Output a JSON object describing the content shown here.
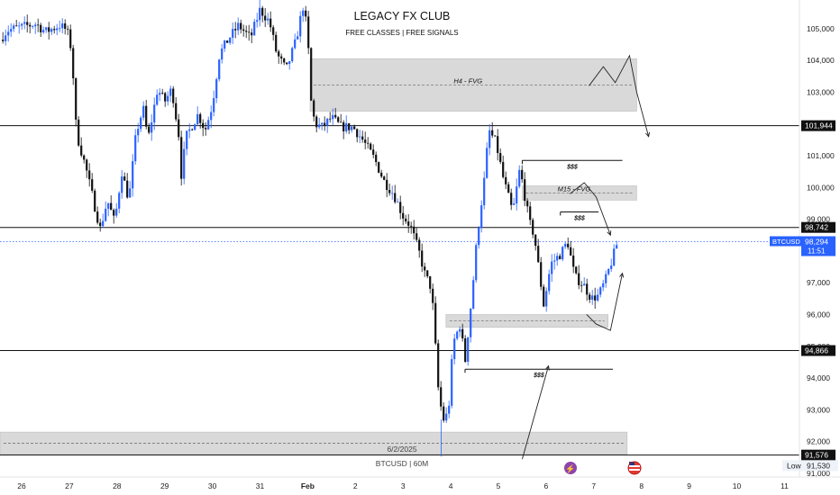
{
  "header": {
    "title": "LEGACY FX CLUB",
    "subtitle": "FREE CLASSES | FREE SIGNALS"
  },
  "footer": {
    "symbol_interval": "BTCUSD | 60M",
    "cursor_date": "6/2/2025"
  },
  "colors": {
    "up_candle": "#2962ff",
    "down_candle": "#111111",
    "level_line": "#111111",
    "current_price_line": "#2962ff",
    "zone_fill": "#d9d9d9",
    "price_tag_dark": "#111111",
    "price_tag_blue": "#2962ff"
  },
  "chart_data": {
    "type": "candlestick",
    "symbol": "BTCUSD",
    "interval": "60M",
    "ylim": [
      91000,
      105900
    ],
    "y_ticks": [
      {
        "v": 105000,
        "label": "105,000"
      },
      {
        "v": 104000,
        "label": "104,000"
      },
      {
        "v": 103000,
        "label": "103,000"
      },
      {
        "v": 101000,
        "label": "101,000"
      },
      {
        "v": 100000,
        "label": "100,000"
      },
      {
        "v": 99000,
        "label": "99,000"
      },
      {
        "v": 97000,
        "label": "97,000"
      },
      {
        "v": 96000,
        "label": "96,000"
      },
      {
        "v": 95000,
        "label": "95,000"
      },
      {
        "v": 94000,
        "label": "94,000"
      },
      {
        "v": 93000,
        "label": "93,000"
      },
      {
        "v": 92000,
        "label": "92,000"
      },
      {
        "v": 91000,
        "label": "91,000"
      }
    ],
    "x_ticks": [
      {
        "t": 0,
        "label": "26"
      },
      {
        "t": 1,
        "label": "27"
      },
      {
        "t": 2,
        "label": "28"
      },
      {
        "t": 3,
        "label": "29"
      },
      {
        "t": 4,
        "label": "30"
      },
      {
        "t": 5,
        "label": "31"
      },
      {
        "t": 6,
        "label": "Feb"
      },
      {
        "t": 7,
        "label": "2"
      },
      {
        "t": 8,
        "label": "3"
      },
      {
        "t": 9,
        "label": "4"
      },
      {
        "t": 10,
        "label": "5"
      },
      {
        "t": 11,
        "label": "6"
      },
      {
        "t": 12,
        "label": "7"
      },
      {
        "t": 13,
        "label": "8"
      },
      {
        "t": 14,
        "label": "9"
      },
      {
        "t": 15,
        "label": "10"
      },
      {
        "t": 16,
        "label": "11"
      }
    ],
    "price_path": [
      [
        -0.45,
        104650
      ],
      [
        -0.3,
        104950
      ],
      [
        0.0,
        105050
      ],
      [
        0.3,
        105150
      ],
      [
        0.5,
        104900
      ],
      [
        0.8,
        105100
      ],
      [
        0.95,
        104950
      ],
      [
        1.05,
        104300
      ],
      [
        1.15,
        101700
      ],
      [
        1.35,
        100600
      ],
      [
        1.55,
        99300
      ],
      [
        1.65,
        98700
      ],
      [
        1.8,
        99600
      ],
      [
        1.95,
        98900
      ],
      [
        2.1,
        100500
      ],
      [
        2.25,
        99600
      ],
      [
        2.4,
        101700
      ],
      [
        2.55,
        102500
      ],
      [
        2.65,
        101500
      ],
      [
        2.85,
        103100
      ],
      [
        3.0,
        102700
      ],
      [
        3.15,
        103100
      ],
      [
        3.3,
        101600
      ],
      [
        3.35,
        100400
      ],
      [
        3.45,
        101600
      ],
      [
        3.7,
        102300
      ],
      [
        3.85,
        101800
      ],
      [
        4.0,
        102600
      ],
      [
        4.15,
        104200
      ],
      [
        4.35,
        104700
      ],
      [
        4.55,
        105100
      ],
      [
        4.8,
        104700
      ],
      [
        5.0,
        105600
      ],
      [
        5.2,
        105200
      ],
      [
        5.35,
        104200
      ],
      [
        5.55,
        103700
      ],
      [
        5.75,
        104600
      ],
      [
        5.9,
        105700
      ],
      [
        6.0,
        104900
      ],
      [
        6.05,
        102900
      ],
      [
        6.15,
        102000
      ],
      [
        6.3,
        101900
      ],
      [
        6.5,
        102200
      ],
      [
        6.7,
        101900
      ],
      [
        6.95,
        101900
      ],
      [
        7.15,
        101500
      ],
      [
        7.4,
        100900
      ],
      [
        7.6,
        100200
      ],
      [
        7.8,
        99800
      ],
      [
        8.0,
        99100
      ],
      [
        8.15,
        98800
      ],
      [
        8.35,
        97900
      ],
      [
        8.45,
        97300
      ],
      [
        8.6,
        96800
      ],
      [
        8.75,
        93400
      ],
      [
        8.85,
        92700
      ],
      [
        8.95,
        92900
      ],
      [
        9.05,
        95100
      ],
      [
        9.2,
        95700
      ],
      [
        9.3,
        94500
      ],
      [
        9.45,
        96700
      ],
      [
        9.55,
        98400
      ],
      [
        9.7,
        100200
      ],
      [
        9.8,
        101800
      ],
      [
        9.95,
        101400
      ],
      [
        10.1,
        100300
      ],
      [
        10.3,
        99200
      ],
      [
        10.45,
        100600
      ],
      [
        10.65,
        98900
      ],
      [
        10.75,
        98500
      ],
      [
        10.95,
        96300
      ],
      [
        11.1,
        97600
      ],
      [
        11.3,
        97900
      ],
      [
        11.45,
        98300
      ],
      [
        11.6,
        97200
      ],
      [
        11.8,
        96900
      ],
      [
        11.95,
        96500
      ],
      [
        12.1,
        96600
      ],
      [
        12.25,
        97100
      ],
      [
        12.4,
        97800
      ],
      [
        12.5,
        98294
      ]
    ],
    "levels": [
      {
        "price": 101944,
        "label": "101,944"
      },
      {
        "price": 98742,
        "label": "98,742"
      },
      {
        "price": 94866,
        "label": "94,866"
      },
      {
        "price": 91576,
        "label": "91,576"
      }
    ],
    "current_price": {
      "price": 98294,
      "symbol": "BTCUSD",
      "label": "98,294",
      "countdown": "11:51"
    },
    "low_marker": {
      "label": "Low",
      "value": "91,530"
    },
    "zones": [
      {
        "label": "H4 - FVG",
        "t0": 6.05,
        "t1": 12.9,
        "p0": 102400,
        "p1": 104050
      },
      {
        "label": "M15 - FVG",
        "t0": 10.5,
        "t1": 12.9,
        "p0": 99600,
        "p1": 100050
      },
      {
        "label": "",
        "t0": 8.9,
        "t1": 12.3,
        "p0": 95600,
        "p1": 96000
      },
      {
        "label": "",
        "t0": -1.0,
        "t1": 12.7,
        "p0": 91600,
        "p1": 92300
      }
    ],
    "liquidity_marks": [
      {
        "label": "$$$",
        "t0": 10.5,
        "t1": 12.6,
        "price": 100850
      },
      {
        "label": "$$$",
        "t0": 11.3,
        "t1": 12.1,
        "price": 99230
      },
      {
        "label": "$$$",
        "t0": 9.3,
        "t1": 12.4,
        "price": 94280
      }
    ]
  }
}
